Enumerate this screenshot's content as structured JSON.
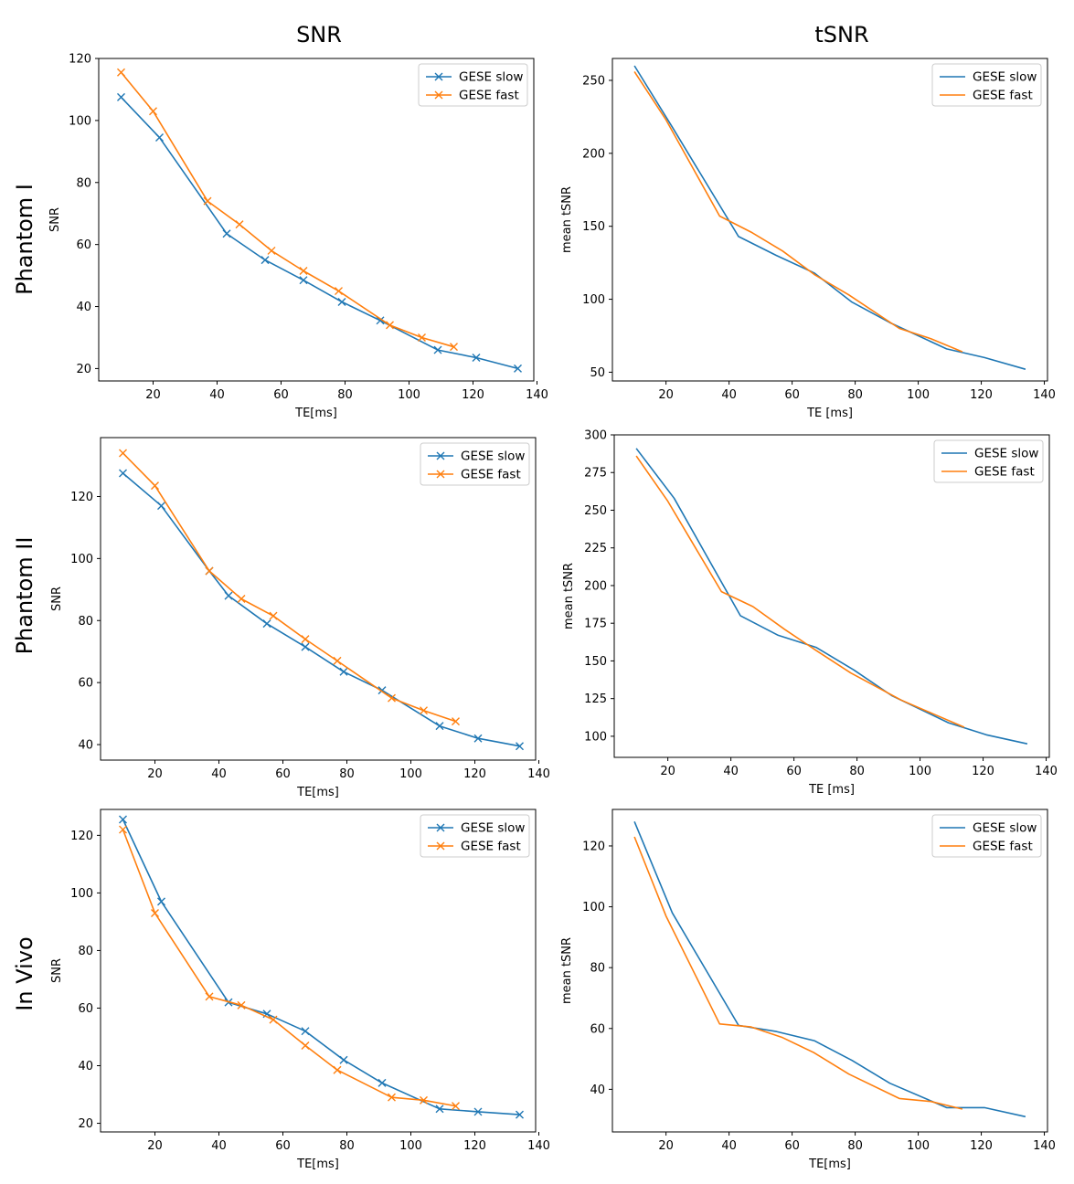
{
  "column_titles": [
    "SNR",
    "tSNR"
  ],
  "row_titles": [
    "Phantom I",
    "Phantom II",
    "In Vivo"
  ],
  "colors": {
    "slow": "#1f77b4",
    "fast": "#ff7f0e"
  },
  "chart_data": [
    {
      "id": "p1-snr",
      "type": "line",
      "markers": true,
      "xlabel": "TE[ms]",
      "ylabel": "SNR",
      "xlim": [
        3,
        139
      ],
      "ylim": [
        16,
        120
      ],
      "xticks": [
        20,
        40,
        60,
        80,
        100,
        120,
        140
      ],
      "yticks": [
        20,
        40,
        60,
        80,
        100,
        120
      ],
      "legend_loc": "top-right",
      "series": [
        {
          "name": "GESE slow",
          "x": [
            10,
            22,
            43,
            55,
            67,
            79,
            91,
            109,
            121,
            134
          ],
          "y": [
            107.5,
            94.5,
            63.5,
            55,
            48.5,
            41.5,
            35.5,
            26,
            23.5,
            20
          ]
        },
        {
          "name": "GESE fast",
          "x": [
            10,
            20,
            37,
            47,
            57,
            67,
            78,
            94,
            104,
            114
          ],
          "y": [
            115.5,
            103,
            74,
            66.5,
            58,
            51.5,
            45,
            34,
            30,
            27
          ]
        }
      ]
    },
    {
      "id": "p1-tsnr",
      "type": "line",
      "markers": false,
      "xlabel": "TE [ms]",
      "ylabel": "mean tSNR",
      "xlim": [
        3,
        141
      ],
      "ylim": [
        44,
        265
      ],
      "xticks": [
        20,
        40,
        60,
        80,
        100,
        120,
        140
      ],
      "yticks": [
        50,
        100,
        150,
        200,
        250
      ],
      "legend_loc": "top-right",
      "series": [
        {
          "name": "GESE slow",
          "x": [
            10,
            22,
            43,
            55,
            67,
            79,
            91,
            109,
            121,
            134
          ],
          "y": [
            260,
            218,
            143,
            130,
            118,
            98,
            84,
            66,
            60,
            52
          ]
        },
        {
          "name": "GESE fast",
          "x": [
            10,
            20,
            37,
            47,
            57,
            67,
            78,
            94,
            104,
            114
          ],
          "y": [
            256,
            223,
            157,
            146,
            133,
            117,
            103,
            80,
            73,
            64
          ]
        }
      ]
    },
    {
      "id": "p2-snr",
      "type": "line",
      "markers": true,
      "xlabel": "TE[ms]",
      "ylabel": "SNR",
      "xlim": [
        3,
        139
      ],
      "ylim": [
        35,
        139
      ],
      "xticks": [
        20,
        40,
        60,
        80,
        100,
        120,
        140
      ],
      "yticks": [
        40,
        60,
        80,
        100,
        120
      ],
      "legend_loc": "top-right",
      "series": [
        {
          "name": "GESE slow",
          "x": [
            10,
            22,
            37,
            43,
            55,
            67,
            79,
            91,
            109,
            121,
            134
          ],
          "y": [
            127.5,
            117,
            96,
            88,
            79,
            71.5,
            63.5,
            57.5,
            46,
            42,
            39.5
          ]
        },
        {
          "name": "GESE fast",
          "x": [
            10,
            20,
            37,
            47,
            57,
            67,
            77,
            94,
            104,
            114
          ],
          "y": [
            134,
            123.5,
            96,
            87,
            81.5,
            74,
            67,
            55,
            51,
            47.5
          ]
        }
      ]
    },
    {
      "id": "p2-tsnr",
      "type": "line",
      "markers": false,
      "xlabel": "TE [ms]",
      "ylabel": "mean tSNR",
      "xlim": [
        3,
        141
      ],
      "ylim": [
        86,
        300
      ],
      "xticks": [
        20,
        40,
        60,
        80,
        100,
        120,
        140
      ],
      "yticks": [
        100,
        125,
        150,
        175,
        200,
        225,
        250,
        275,
        300
      ],
      "legend_loc": "top-right",
      "series": [
        {
          "name": "GESE slow",
          "x": [
            10,
            22,
            43,
            55,
            67,
            79,
            91,
            109,
            121,
            134
          ],
          "y": [
            291,
            258,
            180,
            167,
            159,
            144,
            127,
            109,
            101,
            95
          ]
        },
        {
          "name": "GESE fast",
          "x": [
            10,
            20,
            37,
            47,
            57,
            67,
            78,
            94,
            104,
            114
          ],
          "y": [
            286,
            256,
            196,
            186,
            171,
            157,
            142,
            124,
            115,
            106
          ]
        }
      ]
    },
    {
      "id": "iv-snr",
      "type": "line",
      "markers": true,
      "xlabel": "TE[ms]",
      "ylabel": "SNR",
      "xlim": [
        3,
        139
      ],
      "ylim": [
        17,
        129
      ],
      "xticks": [
        20,
        40,
        60,
        80,
        100,
        120,
        140
      ],
      "yticks": [
        20,
        40,
        60,
        80,
        100,
        120
      ],
      "legend_loc": "top-right",
      "series": [
        {
          "name": "GESE slow",
          "x": [
            10,
            22,
            43,
            55,
            67,
            79,
            91,
            109,
            121,
            134
          ],
          "y": [
            125.5,
            97,
            62,
            58,
            52,
            42,
            34,
            25,
            24,
            23
          ]
        },
        {
          "name": "GESE fast",
          "x": [
            10,
            20,
            37,
            47,
            57,
            67,
            77,
            94,
            104,
            114
          ],
          "y": [
            122,
            93,
            64,
            61,
            56,
            47,
            38.5,
            29,
            28,
            26
          ]
        }
      ]
    },
    {
      "id": "iv-tsnr",
      "type": "line",
      "markers": false,
      "xlabel": "TE[ms]",
      "ylabel": "mean tSNR",
      "xlim": [
        3,
        141
      ],
      "ylim": [
        26,
        132
      ],
      "xticks": [
        20,
        40,
        60,
        80,
        100,
        120,
        140
      ],
      "yticks": [
        40,
        60,
        80,
        100,
        120
      ],
      "legend_loc": "top-right",
      "series": [
        {
          "name": "GESE slow",
          "x": [
            10,
            22,
            43,
            55,
            67,
            79,
            91,
            109,
            121,
            134
          ],
          "y": [
            128,
            98,
            61,
            59,
            56,
            49.5,
            42,
            34,
            34,
            31
          ]
        },
        {
          "name": "GESE fast",
          "x": [
            10,
            20,
            37,
            47,
            57,
            67,
            78,
            94,
            104,
            114
          ],
          "y": [
            123,
            97,
            61.5,
            60.5,
            57,
            52,
            45,
            37,
            36,
            33.5
          ]
        }
      ]
    }
  ]
}
